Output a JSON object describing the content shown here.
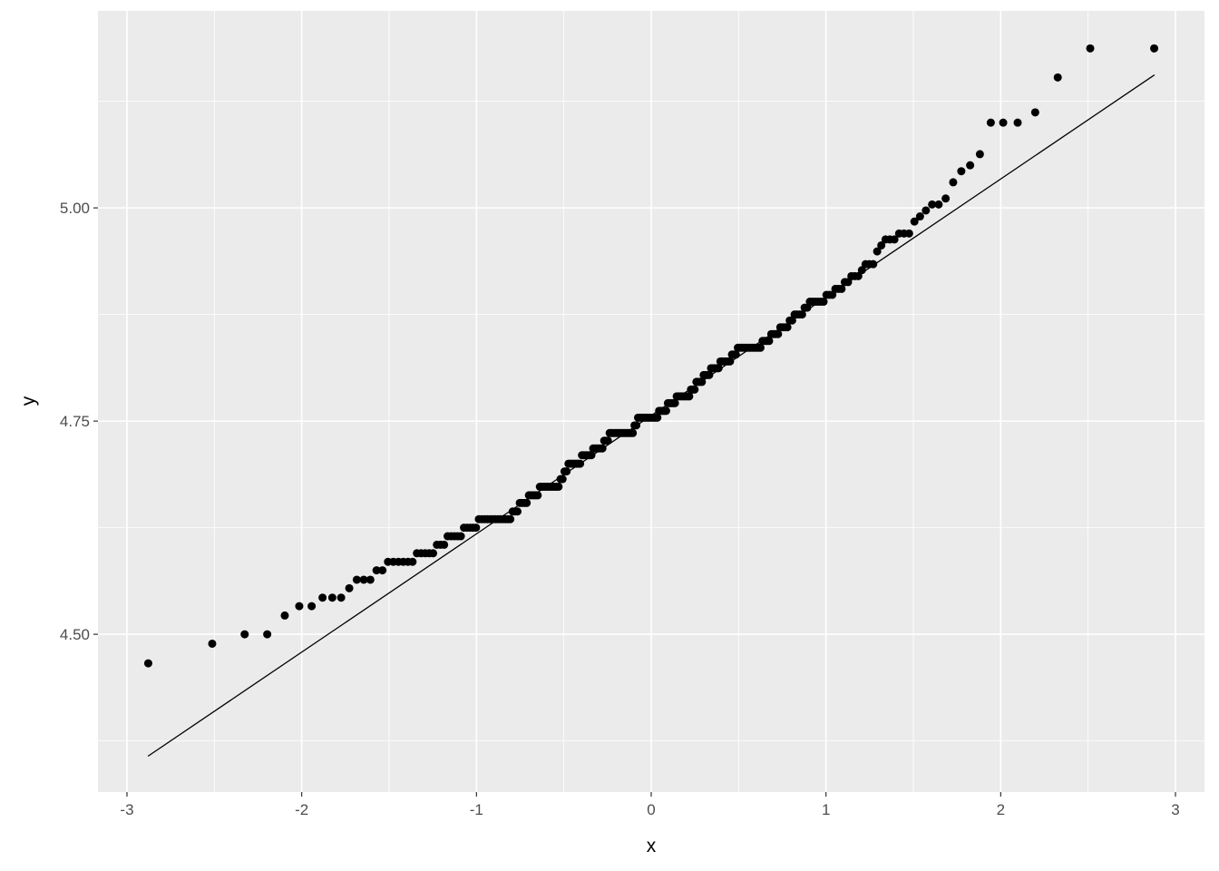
{
  "chart_data": {
    "type": "scatter",
    "subtype": "normal-qq",
    "title": "",
    "xlabel": "x",
    "ylabel": "y",
    "xlim": [
      -3.166,
      3.166
    ],
    "ylim": [
      4.315,
      5.231
    ],
    "grid": true,
    "legend": "none",
    "x_ticks": [
      -3,
      -2,
      -1,
      0,
      1,
      2,
      3
    ],
    "x_tick_labels": [
      "-3",
      "-2",
      "-1",
      "0",
      "1",
      "2",
      "3"
    ],
    "y_ticks": [
      4.5,
      4.75,
      5.0
    ],
    "y_tick_labels": [
      "4.50",
      "4.75",
      "5.00"
    ],
    "reference_line": {
      "intercept": 4.7565,
      "slope": 0.1387,
      "x_range": [
        -2.88,
        2.88
      ]
    },
    "colors": {
      "panel": "#EBEBEB",
      "grid": "#FFFFFF",
      "points": "#000000",
      "line": "#000000",
      "tick_text": "#4D4D4D"
    },
    "sample": [
      4.466,
      4.489,
      4.5,
      4.5,
      4.522,
      4.533,
      4.533,
      4.543,
      4.543,
      4.543,
      4.554,
      4.564,
      4.564,
      4.564,
      4.575,
      4.575,
      4.585,
      4.585,
      4.585,
      4.585,
      4.585,
      4.585,
      4.595,
      4.595,
      4.595,
      4.595,
      4.595,
      4.605,
      4.605,
      4.605,
      4.615,
      4.615,
      4.615,
      4.615,
      4.615,
      4.625,
      4.625,
      4.625,
      4.625,
      4.625,
      4.635,
      4.635,
      4.635,
      4.635,
      4.635,
      4.635,
      4.635,
      4.635,
      4.635,
      4.635,
      4.635,
      4.635,
      4.635,
      4.644,
      4.644,
      4.644,
      4.654,
      4.654,
      4.654,
      4.654,
      4.663,
      4.663,
      4.663,
      4.663,
      4.663,
      4.673,
      4.673,
      4.673,
      4.673,
      4.673,
      4.673,
      4.673,
      4.673,
      4.673,
      4.673,
      4.682,
      4.682,
      4.691,
      4.691,
      4.7,
      4.7,
      4.7,
      4.7,
      4.7,
      4.7,
      4.7,
      4.71,
      4.71,
      4.71,
      4.71,
      4.71,
      4.71,
      4.718,
      4.718,
      4.718,
      4.718,
      4.718,
      4.718,
      4.727,
      4.727,
      4.727,
      4.736,
      4.736,
      4.736,
      4.736,
      4.736,
      4.736,
      4.736,
      4.736,
      4.736,
      4.736,
      4.736,
      4.736,
      4.736,
      4.736,
      4.745,
      4.745,
      4.754,
      4.754,
      4.754,
      4.754,
      4.754,
      4.754,
      4.754,
      4.754,
      4.754,
      4.754,
      4.754,
      4.754,
      4.762,
      4.762,
      4.762,
      4.762,
      4.762,
      4.771,
      4.771,
      4.771,
      4.771,
      4.771,
      4.779,
      4.779,
      4.779,
      4.779,
      4.779,
      4.779,
      4.779,
      4.779,
      4.787,
      4.787,
      4.787,
      4.796,
      4.796,
      4.796,
      4.796,
      4.804,
      4.804,
      4.804,
      4.804,
      4.812,
      4.812,
      4.812,
      4.812,
      4.812,
      4.82,
      4.82,
      4.82,
      4.82,
      4.82,
      4.82,
      4.828,
      4.828,
      4.828,
      4.836,
      4.836,
      4.836,
      4.836,
      4.836,
      4.836,
      4.836,
      4.836,
      4.836,
      4.836,
      4.836,
      4.836,
      4.844,
      4.844,
      4.844,
      4.844,
      4.852,
      4.852,
      4.852,
      4.852,
      4.86,
      4.86,
      4.86,
      4.86,
      4.868,
      4.868,
      4.875,
      4.875,
      4.875,
      4.875,
      4.883,
      4.883,
      4.89,
      4.89,
      4.89,
      4.89,
      4.89,
      4.89,
      4.898,
      4.898,
      4.898,
      4.905,
      4.905,
      4.905,
      4.913,
      4.913,
      4.92,
      4.92,
      4.92,
      4.927,
      4.934,
      4.934,
      4.934,
      4.949,
      4.956,
      4.963,
      4.963,
      4.963,
      4.97,
      4.97,
      4.97,
      4.984,
      4.99,
      4.997,
      5.004,
      5.004,
      5.011,
      5.03,
      5.043,
      5.05,
      5.063,
      5.1,
      5.1,
      5.1,
      5.112,
      5.153,
      5.187,
      5.187
    ]
  }
}
